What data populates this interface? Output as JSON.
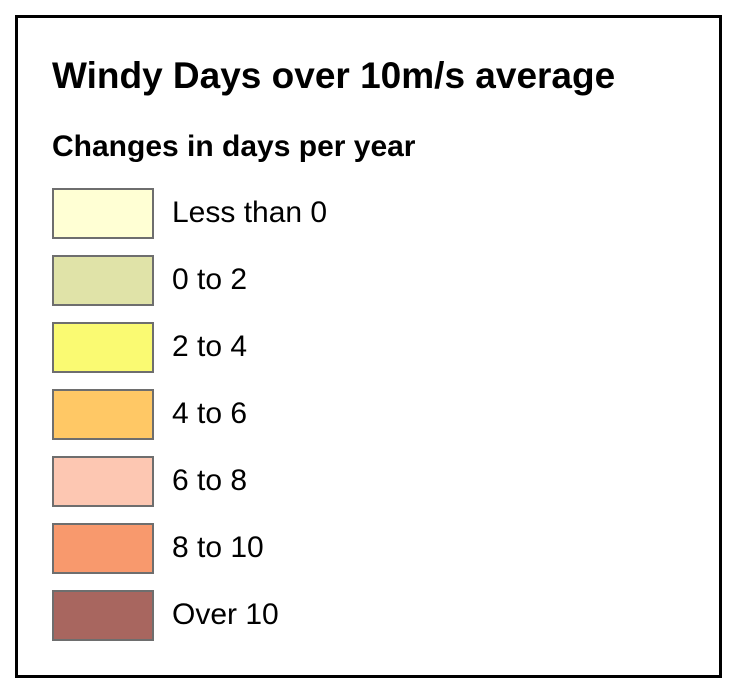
{
  "legend": {
    "title": "Windy Days over 10m/s average",
    "subtitle": "Changes in days per year",
    "items": [
      {
        "label": "Less than 0",
        "color": "#ffffd4"
      },
      {
        "label": "0 to 2",
        "color": "#e0e3a8"
      },
      {
        "label": "2 to 4",
        "color": "#fafa72"
      },
      {
        "label": "4 to 6",
        "color": "#ffc865"
      },
      {
        "label": "6 to 8",
        "color": "#fdc7b2"
      },
      {
        "label": "8 to 10",
        "color": "#f8996d"
      },
      {
        "label": "Over 10",
        "color": "#a8665f"
      }
    ]
  }
}
